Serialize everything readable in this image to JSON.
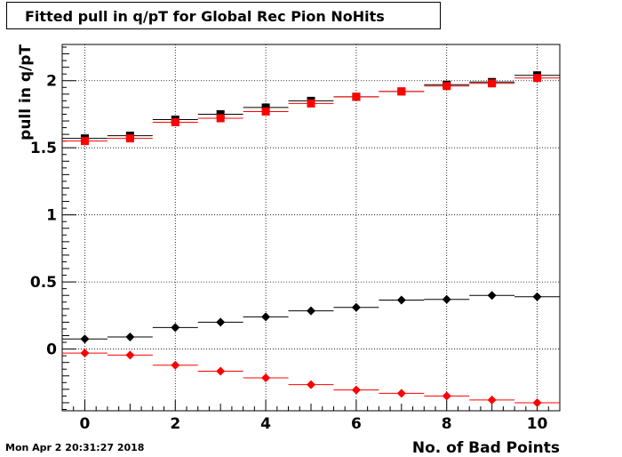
{
  "chart_data": {
    "type": "scatter",
    "title": "Fitted pull in q/pT for Global Rec Pion NoHits",
    "xlabel": "No. of Bad Points",
    "ylabel": "pull in q/pT",
    "xlim": [
      -0.5,
      10.5
    ],
    "ylim": [
      -0.46,
      2.27
    ],
    "grid": true,
    "x": [
      0,
      1,
      2,
      3,
      4,
      5,
      6,
      7,
      8,
      9,
      10
    ],
    "xticks": [
      0,
      2,
      4,
      6,
      8,
      10
    ],
    "xtick_labels": [
      "0",
      "2",
      "4",
      "6",
      "8",
      "10"
    ],
    "yticks": [
      0,
      0.5,
      1,
      1.5,
      2
    ],
    "ytick_labels": [
      "0",
      "0.5",
      "1",
      "1.5",
      "2"
    ],
    "series": [
      {
        "marker": "square",
        "color": "#000000",
        "values": [
          1.57,
          1.59,
          1.71,
          1.75,
          1.8,
          1.85,
          1.88,
          1.92,
          1.97,
          1.99,
          2.04
        ]
      },
      {
        "marker": "square",
        "color": "#ff0000",
        "values": [
          1.55,
          1.57,
          1.69,
          1.72,
          1.77,
          1.83,
          1.88,
          1.92,
          1.96,
          1.98,
          2.02
        ]
      },
      {
        "marker": "diamond",
        "color": "#000000",
        "values": [
          0.075,
          0.09,
          0.16,
          0.2,
          0.24,
          0.285,
          0.31,
          0.365,
          0.37,
          0.4,
          0.39
        ]
      },
      {
        "marker": "diamond",
        "color": "#ff0000",
        "values": [
          -0.03,
          -0.045,
          -0.12,
          -0.165,
          -0.215,
          -0.265,
          -0.305,
          -0.33,
          -0.35,
          -0.38,
          -0.4
        ]
      }
    ]
  },
  "footer": {
    "timestamp": "Mon Apr  2 20:31:27 2018"
  }
}
